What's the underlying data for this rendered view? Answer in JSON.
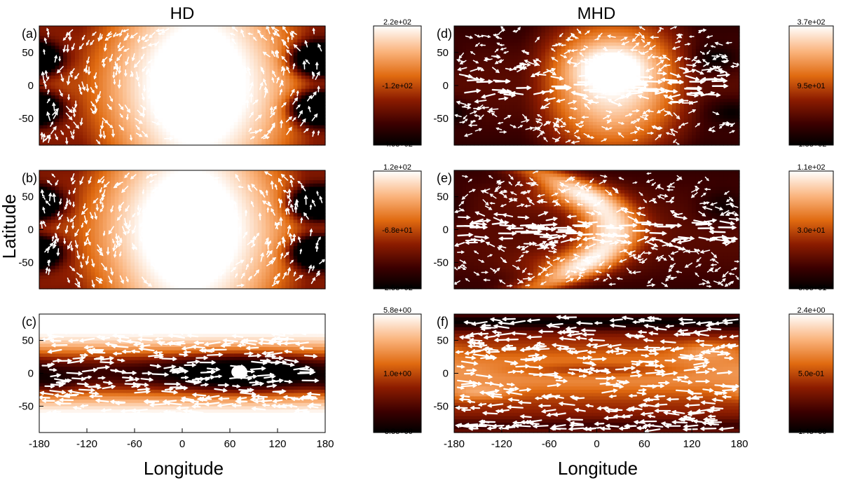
{
  "figure": {
    "columns": [
      "HD",
      "MHD"
    ],
    "ylabel": "Latitude",
    "xlabel": "Longitude",
    "x_ticks": [
      "-180",
      "-120",
      "-60",
      "0",
      "60",
      "120",
      "180"
    ],
    "y_ticks": [
      "50",
      "0",
      "-50"
    ]
  },
  "chart_data": [
    {
      "type": "heatmap",
      "panel": "(a)",
      "column": "HD",
      "xlim": [
        -180,
        180
      ],
      "ylim": [
        -90,
        90
      ],
      "colorbar": {
        "max": "2.2e+02",
        "mid": "-1.2e+02",
        "min": "-4.6e+02"
      },
      "field": {
        "pattern": "hd_upper",
        "hot_lon": 20,
        "cold_lons": [
          -180,
          165
        ],
        "cold_lats": [
          40,
          -35
        ]
      },
      "vectors": {
        "style": "sparse_swirl",
        "seed": 11
      }
    },
    {
      "type": "heatmap",
      "panel": "(b)",
      "column": "HD",
      "xlim": [
        -180,
        180
      ],
      "ylim": [
        -90,
        90
      ],
      "colorbar": {
        "max": "1.2e+02",
        "mid": "-6.8e+01",
        "min": "-2.5e+02"
      },
      "field": {
        "pattern": "hd_upper",
        "hot_lon": 10,
        "cold_lons": [
          -180,
          165
        ],
        "cold_lats": [
          40,
          -35
        ]
      },
      "vectors": {
        "style": "sparse_swirl",
        "seed": 23
      }
    },
    {
      "type": "heatmap",
      "panel": "(c)",
      "column": "HD",
      "xlim": [
        -180,
        180
      ],
      "ylim": [
        -90,
        90
      ],
      "colorbar": {
        "max": "5.8e+00",
        "mid": "1.0e+00",
        "min": "-3.8e+00"
      },
      "field": {
        "pattern": "hd_deep",
        "cold_lon": 75,
        "cold_lat": 0
      },
      "vectors": {
        "style": "zonal_dense",
        "seed": 37
      }
    },
    {
      "type": "heatmap",
      "panel": "(d)",
      "column": "MHD",
      "xlim": [
        -180,
        180
      ],
      "ylim": [
        -90,
        90
      ],
      "colorbar": {
        "max": "3.7e+02",
        "mid": "9.5e+01",
        "min": "-1.8e+02"
      },
      "field": {
        "pattern": "mhd_upper",
        "hot_lon": 20
      },
      "vectors": {
        "style": "equatorial_jet",
        "seed": 41
      }
    },
    {
      "type": "heatmap",
      "panel": "(e)",
      "column": "MHD",
      "xlim": [
        -180,
        180
      ],
      "ylim": [
        -90,
        90
      ],
      "colorbar": {
        "max": "1.1e+02",
        "mid": "3.0e+01",
        "min": "-5.0e+01"
      },
      "field": {
        "pattern": "mhd_chevron",
        "hot_lon": -20
      },
      "vectors": {
        "style": "equatorial_jet",
        "seed": 53
      }
    },
    {
      "type": "heatmap",
      "panel": "(f)",
      "column": "MHD",
      "xlim": [
        -180,
        180
      ],
      "ylim": [
        -90,
        90
      ],
      "colorbar": {
        "max": "2.4e+00",
        "mid": "5.0e-01",
        "min": "-1.4e+00"
      },
      "field": {
        "pattern": "mhd_deep"
      },
      "vectors": {
        "style": "zonal_dense",
        "seed": 67
      }
    }
  ]
}
